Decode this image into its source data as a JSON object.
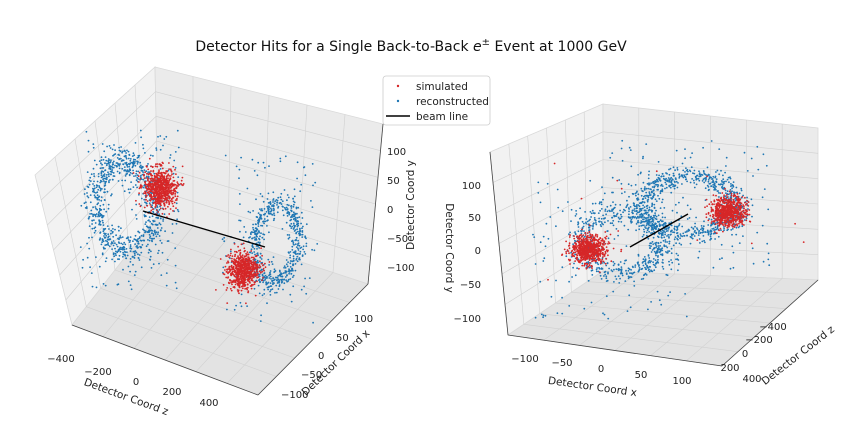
{
  "title_prefix": "Detector Hits for a Single Back-to-Back ",
  "title_math": "e",
  "title_sup": "±",
  "title_suffix": " Event at 1000 GeV",
  "colors": {
    "simulated": "#d62728",
    "reconstructed": "#1f77b4",
    "beam": "#000000"
  },
  "legend": {
    "placement": "upper-left of right subplot",
    "entries": [
      {
        "label": "simulated",
        "marker": "dot",
        "color": "#d62728"
      },
      {
        "label": "reconstructed",
        "marker": "dot",
        "color": "#1f77b4"
      },
      {
        "label": "beam line",
        "marker": "line",
        "color": "#000000"
      }
    ]
  },
  "chart_data": [
    {
      "type": "scatter",
      "dims": 3,
      "view": "left",
      "grid": true,
      "zlabel": "Detector Coord z",
      "xlabel": "Detector Coord x",
      "ylabel": "Detector Coord y",
      "ztick_labels": [
        "−400",
        "−200",
        "0",
        "200",
        "400"
      ],
      "xtick_labels": [
        "−100",
        "−50",
        "0",
        "50",
        "100"
      ],
      "ytick_labels": [
        "100",
        "50",
        "0",
        "−50",
        "−100"
      ],
      "zlim": [
        -500,
        500
      ],
      "xlim": [
        -130,
        130
      ],
      "ylim": [
        -130,
        130
      ],
      "series": [
        {
          "name": "simulated",
          "clusters": [
            {
              "z": -480,
              "x": 40,
              "y": 40,
              "spread": 12,
              "count": 600
            },
            {
              "z": 480,
              "x": -40,
              "y": -40,
              "spread": 12,
              "count": 600
            }
          ]
        },
        {
          "name": "reconstructed",
          "rings": [
            {
              "z": -480,
              "radius": 65,
              "count": 900
            },
            {
              "z": 480,
              "radius": 65,
              "count": 900
            }
          ]
        },
        {
          "name": "beam line",
          "from": {
            "z": -480,
            "x": 0,
            "y": 0
          },
          "to": {
            "z": 480,
            "x": 0,
            "y": 0
          }
        }
      ]
    },
    {
      "type": "scatter",
      "dims": 3,
      "view": "right",
      "grid": true,
      "xlabel": "Detector Coord x",
      "zlabel": "Detector Coord z",
      "ylabel": "Detector Coord y",
      "xtick_labels": [
        "−100",
        "−50",
        "0",
        "50",
        "100"
      ],
      "ztick_labels": [
        "−400",
        "−200",
        "0",
        "200",
        "400"
      ],
      "ytick_labels": [
        "100",
        "50",
        "0",
        "−50",
        "−100"
      ],
      "zlim": [
        -500,
        500
      ],
      "xlim": [
        -130,
        130
      ],
      "ylim": [
        -130,
        130
      ],
      "series": [
        {
          "name": "simulated",
          "clusters": [
            {
              "z": 480,
              "x": -40,
              "y": -40,
              "spread": 12,
              "count": 600
            },
            {
              "z": -480,
              "x": 40,
              "y": 40,
              "spread": 12,
              "count": 600
            }
          ]
        },
        {
          "name": "reconstructed",
          "rings": [
            {
              "z": 480,
              "radius": 65,
              "count": 900
            },
            {
              "z": -480,
              "radius": 65,
              "count": 900
            }
          ]
        },
        {
          "name": "beam line",
          "from": {
            "z": -480,
            "x": 0,
            "y": 0
          },
          "to": {
            "z": 480,
            "x": 0,
            "y": 0
          }
        }
      ]
    }
  ]
}
